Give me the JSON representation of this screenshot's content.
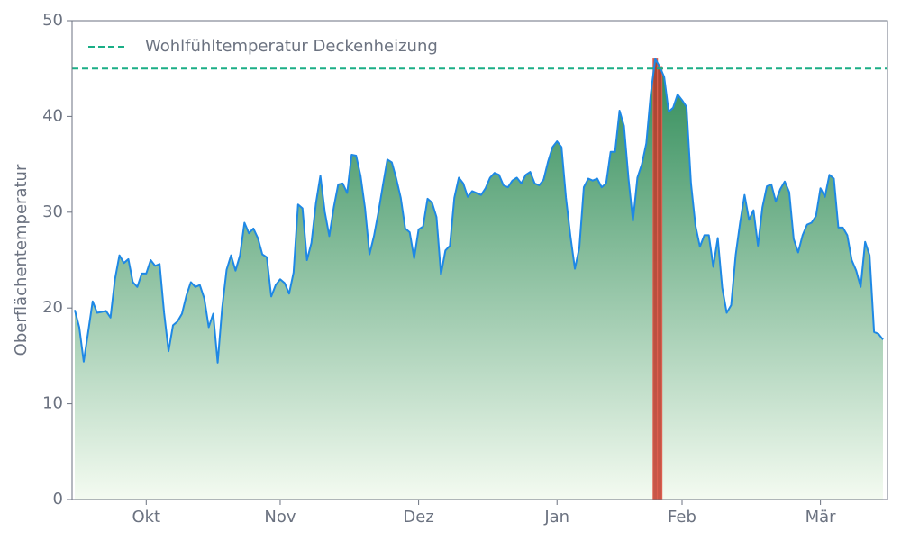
{
  "chart_data": {
    "type": "area",
    "ylabel": "Oberflächentemperatur",
    "color": "#1e88e5",
    "fill_top": "#2e8b57",
    "fill_bottom": "#f4fbf1",
    "highlight_color": "#c0392b",
    "threshold": {
      "name": "Wohlfühltemperatur Deckenheizung",
      "value": 45,
      "color": "#1aae86"
    },
    "legend": "upper left",
    "ylim": [
      0,
      50
    ],
    "yticks": [
      0,
      10,
      20,
      30,
      40,
      50
    ],
    "categories": [
      null,
      null,
      null,
      null,
      null,
      null,
      null,
      null,
      null,
      null,
      null,
      null,
      null,
      null,
      null,
      null,
      "Okt",
      null,
      null,
      null,
      null,
      null,
      null,
      null,
      null,
      null,
      null,
      null,
      null,
      null,
      null,
      null,
      null,
      null,
      null,
      null,
      null,
      null,
      null,
      null,
      null,
      null,
      null,
      null,
      null,
      null,
      "Nov",
      null,
      null,
      null,
      null,
      null,
      null,
      null,
      null,
      null,
      null,
      null,
      null,
      null,
      null,
      null,
      null,
      null,
      null,
      null,
      null,
      null,
      null,
      null,
      null,
      null,
      null,
      null,
      null,
      null,
      null,
      "Dez",
      null,
      null,
      null,
      null,
      null,
      null,
      null,
      null,
      null,
      null,
      null,
      null,
      null,
      null,
      null,
      null,
      null,
      null,
      null,
      null,
      null,
      null,
      null,
      null,
      null,
      null,
      null,
      null,
      null,
      null,
      "Jan",
      null,
      null,
      null,
      null,
      null,
      null,
      null,
      null,
      null,
      null,
      null,
      null,
      null,
      null,
      null,
      null,
      null,
      null,
      null,
      null,
      null,
      null,
      null,
      null,
      null,
      null,
      null,
      "Feb",
      null,
      null,
      null,
      null,
      null,
      null,
      null,
      null,
      null,
      null,
      null,
      null,
      null,
      null,
      null,
      null,
      null,
      null,
      null,
      null,
      null,
      null,
      null,
      null,
      null,
      null,
      null,
      null,
      null,
      null,
      "Mär",
      null,
      null,
      null,
      null,
      null,
      null,
      null,
      null,
      null,
      null,
      null,
      null,
      null,
      null
    ],
    "values": [
      19.8,
      18,
      14.4,
      17.5,
      20.7,
      19.5,
      19.6,
      19.7,
      19,
      23,
      25.5,
      24.7,
      25.1,
      22.7,
      22.2,
      23.6,
      23.6,
      25,
      24.4,
      24.6,
      19.5,
      15.5,
      18.2,
      18.6,
      19.4,
      21.3,
      22.7,
      22.2,
      22.4,
      21,
      18,
      19.4,
      14.3,
      20,
      24,
      25.5,
      23.9,
      25.5,
      28.9,
      27.8,
      28.3,
      27.3,
      25.6,
      25.3,
      21.2,
      22.4,
      23,
      22.6,
      21.5,
      23.7,
      30.8,
      30.4,
      25,
      26.8,
      30.9,
      33.8,
      30,
      27.5,
      30.5,
      32.9,
      33,
      32,
      36,
      35.9,
      33.8,
      30.4,
      25.6,
      27.5,
      30,
      32.8,
      35.5,
      35.2,
      33.5,
      31.5,
      28.3,
      27.9,
      25.2,
      28.2,
      28.5,
      31.4,
      31,
      29.5,
      23.5,
      26,
      26.5,
      31.5,
      33.6,
      33,
      31.6,
      32.2,
      32,
      31.8,
      32.5,
      33.6,
      34.1,
      33.9,
      32.8,
      32.6,
      33.3,
      33.6,
      33,
      33.9,
      34.2,
      33,
      32.8,
      33.4,
      35.3,
      36.8,
      37.4,
      36.8,
      31.5,
      27.5,
      24.1,
      26.3,
      32.6,
      33.5,
      33.3,
      33.5,
      32.6,
      33,
      36.3,
      36.3,
      40.6,
      39,
      33.5,
      29.1,
      33.6,
      35,
      37.2,
      42.4,
      46,
      45.2,
      44.1,
      40.5,
      40.9,
      42.3,
      41.7,
      41,
      33,
      28.6,
      26.4,
      27.6,
      27.6,
      24.3,
      27.3,
      22.1,
      19.5,
      20.3,
      25.5,
      28.9,
      31.8,
      29.2,
      30.2,
      26.5,
      30.5,
      32.7,
      32.9,
      31.1,
      32.4,
      33.2,
      32.1,
      27.2,
      25.8,
      27.6,
      28.7,
      28.9,
      29.6,
      32.5,
      31.6,
      33.9,
      33.5,
      28.4,
      28.4,
      27.6,
      25,
      23.9,
      22.2,
      26.9,
      25.5,
      17.5,
      17.3,
      16.7
    ]
  }
}
